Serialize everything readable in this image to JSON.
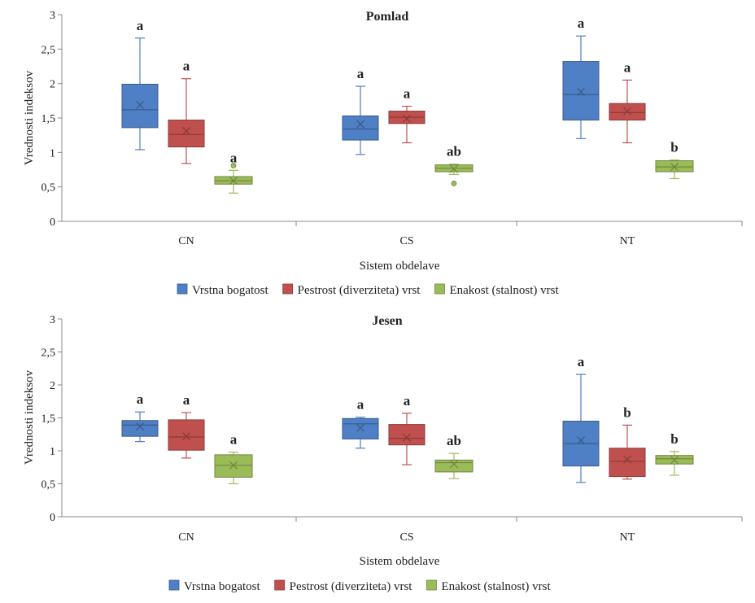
{
  "chart_data": [
    {
      "type": "box",
      "title": "Pomlad",
      "xlabel": "Sistem obdelave",
      "ylabel": "Vrednosti indeksov",
      "ylim": [
        0,
        3
      ],
      "yticks": [
        "0",
        "0,5",
        "1",
        "1,5",
        "2",
        "2,5",
        "3"
      ],
      "categories": [
        "CN",
        "CS",
        "NT"
      ],
      "legend_position": "bottom",
      "series": [
        {
          "name": "Vrstna bogatost",
          "color": "#4F7FC4",
          "boxes": [
            {
              "min": 1.04,
              "q1": 1.36,
              "median": 1.62,
              "mean": 1.69,
              "q3": 1.99,
              "max": 2.66,
              "outliers": [],
              "letter": "a"
            },
            {
              "min": 0.97,
              "q1": 1.18,
              "median": 1.34,
              "mean": 1.41,
              "q3": 1.53,
              "max": 1.96,
              "outliers": [],
              "letter": "a"
            },
            {
              "min": 1.2,
              "q1": 1.47,
              "median": 1.84,
              "mean": 1.88,
              "q3": 2.32,
              "max": 2.69,
              "outliers": [],
              "letter": "a"
            }
          ]
        },
        {
          "name": "Pestrost (diverziteta) vrst",
          "color": "#C0504D",
          "boxes": [
            {
              "min": 0.84,
              "q1": 1.08,
              "median": 1.26,
              "mean": 1.31,
              "q3": 1.47,
              "max": 2.07,
              "outliers": [],
              "letter": "a"
            },
            {
              "min": 1.14,
              "q1": 1.42,
              "median": 1.51,
              "mean": 1.49,
              "q3": 1.6,
              "max": 1.67,
              "outliers": [],
              "letter": "a"
            },
            {
              "min": 1.14,
              "q1": 1.47,
              "median": 1.58,
              "mean": 1.6,
              "q3": 1.71,
              "max": 2.05,
              "outliers": [],
              "letter": "a"
            }
          ]
        },
        {
          "name": "Enakost (stalnost) vrst",
          "color": "#9BBB59",
          "boxes": [
            {
              "min": 0.41,
              "q1": 0.54,
              "median": 0.59,
              "mean": 0.59,
              "q3": 0.65,
              "max": 0.74,
              "outliers": [
                0.81
              ],
              "letter": "a"
            },
            {
              "min": 0.68,
              "q1": 0.72,
              "median": 0.77,
              "mean": 0.76,
              "q3": 0.82,
              "max": 0.83,
              "outliers": [
                0.55
              ],
              "letter": "ab"
            },
            {
              "min": 0.62,
              "q1": 0.72,
              "median": 0.79,
              "mean": 0.79,
              "q3": 0.88,
              "max": 0.89,
              "outliers": [],
              "letter": "b"
            }
          ]
        }
      ]
    },
    {
      "type": "box",
      "title": "Jesen",
      "xlabel": "Sistem obdelave",
      "ylabel": "Vrednosti indeksov",
      "ylim": [
        0,
        3
      ],
      "yticks": [
        "0",
        "0,5",
        "1",
        "1,5",
        "2",
        "2,5",
        "3"
      ],
      "categories": [
        "CN",
        "CS",
        "NT"
      ],
      "legend_position": "bottom",
      "series": [
        {
          "name": "Vrstna bogatost",
          "color": "#4F7FC4",
          "boxes": [
            {
              "min": 1.14,
              "q1": 1.22,
              "median": 1.39,
              "mean": 1.37,
              "q3": 1.46,
              "max": 1.59,
              "outliers": [],
              "letter": "a"
            },
            {
              "min": 1.04,
              "q1": 1.18,
              "median": 1.41,
              "mean": 1.35,
              "q3": 1.49,
              "max": 1.51,
              "outliers": [],
              "letter": "a"
            },
            {
              "min": 0.52,
              "q1": 0.77,
              "median": 1.11,
              "mean": 1.16,
              "q3": 1.45,
              "max": 2.16,
              "outliers": [],
              "letter": "a"
            }
          ]
        },
        {
          "name": "Pestrost (diverziteta) vrst",
          "color": "#C0504D",
          "boxes": [
            {
              "min": 0.89,
              "q1": 1.01,
              "median": 1.21,
              "mean": 1.22,
              "q3": 1.47,
              "max": 1.58,
              "outliers": [],
              "letter": "a"
            },
            {
              "min": 0.79,
              "q1": 1.09,
              "median": 1.19,
              "mean": 1.2,
              "q3": 1.4,
              "max": 1.57,
              "outliers": [],
              "letter": "a"
            },
            {
              "min": 0.57,
              "q1": 0.61,
              "median": 0.84,
              "mean": 0.87,
              "q3": 1.04,
              "max": 1.39,
              "outliers": [],
              "letter": "b"
            }
          ]
        },
        {
          "name": "Enakost (stalnost) vrst",
          "color": "#9BBB59",
          "boxes": [
            {
              "min": 0.5,
              "q1": 0.6,
              "median": 0.78,
              "mean": 0.78,
              "q3": 0.94,
              "max": 0.98,
              "outliers": [],
              "letter": "a"
            },
            {
              "min": 0.58,
              "q1": 0.68,
              "median": 0.82,
              "mean": 0.8,
              "q3": 0.86,
              "max": 0.96,
              "outliers": [],
              "letter": "ab"
            },
            {
              "min": 0.63,
              "q1": 0.8,
              "median": 0.88,
              "mean": 0.86,
              "q3": 0.93,
              "max": 0.99,
              "outliers": [],
              "letter": "b"
            }
          ]
        }
      ]
    }
  ]
}
